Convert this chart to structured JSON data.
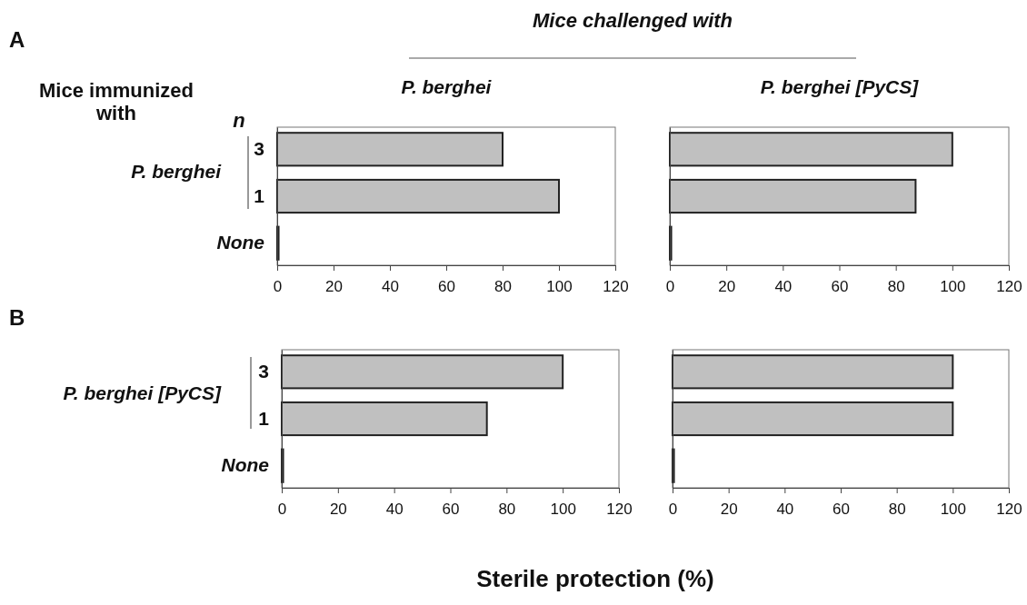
{
  "chart_data": [
    {
      "type": "bar",
      "orientation": "horizontal",
      "title": "P. berghei",
      "categories": [
        "3",
        "1",
        "None"
      ],
      "values": [
        80,
        100,
        0.5
      ],
      "color": "#c0c0c0",
      "xlim": [
        0,
        120
      ],
      "xticks": [
        0,
        20,
        40,
        60,
        80,
        100,
        120
      ],
      "annotations": [
        "A",
        "Mice challenged with",
        "Mice immunized with",
        "n",
        "P. berghei"
      ]
    },
    {
      "type": "bar",
      "orientation": "horizontal",
      "title": "P. berghei [PyCS]",
      "categories": [
        null,
        null,
        null
      ],
      "values": [
        100,
        87,
        0.5
      ],
      "color": "#c0c0c0",
      "xlim": [
        0,
        120
      ],
      "xticks": [
        0,
        20,
        40,
        60,
        80,
        100,
        120
      ]
    },
    {
      "type": "bar",
      "orientation": "horizontal",
      "categories": [
        "3",
        "1",
        "None"
      ],
      "values": [
        100,
        73,
        0.5
      ],
      "color": "#c0c0c0",
      "xlim": [
        0,
        120
      ],
      "xticks": [
        0,
        20,
        40,
        60,
        80,
        100,
        120
      ],
      "annotations": [
        "B",
        "P. berghei [PyCS]",
        "Sterile protection (%)"
      ]
    },
    {
      "type": "bar",
      "orientation": "horizontal",
      "categories": [
        null,
        null,
        null
      ],
      "values": [
        100,
        100,
        0.5
      ],
      "color": "#c0c0c0",
      "xlim": [
        0,
        120
      ],
      "xticks": [
        0,
        20,
        40,
        60,
        80,
        100,
        120
      ]
    }
  ]
}
